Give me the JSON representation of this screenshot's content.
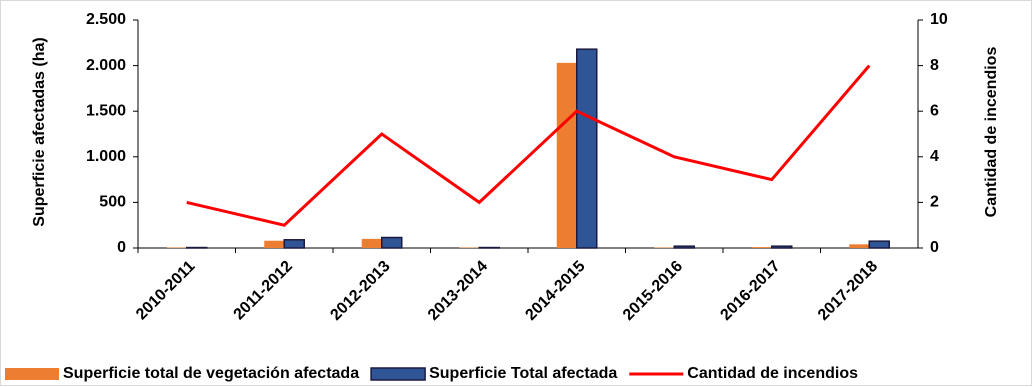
{
  "chart_data": {
    "type": "combo",
    "categories": [
      "2010-2011",
      "2011-2012",
      "2012-2013",
      "2013-2014",
      "2014-2015",
      "2015-2016",
      "2016-2017",
      "2017-2018"
    ],
    "ylabel": "Superficie  afectadas (ha)",
    "y2label": "Cantidad de incendios",
    "ylim": [
      0,
      2500
    ],
    "yticks": [
      0,
      500,
      {
        "value": 1000,
        "label": "1.000"
      },
      {
        "value": 1500,
        "label": "1.500"
      },
      {
        "value": 2000,
        "label": "2.000"
      },
      {
        "value": 2500,
        "label": "2.500"
      }
    ],
    "y2lim": [
      0,
      10
    ],
    "y2ticks": [
      0,
      2,
      4,
      6,
      8,
      10
    ],
    "series": [
      {
        "name": "Superficie total de vegetación afectada",
        "type": "bar",
        "color": "#ed7d31",
        "values": [
          5,
          80,
          100,
          5,
          2030,
          5,
          10,
          40
        ]
      },
      {
        "name": "Superficie Total afectada",
        "type": "bar",
        "color": "#2f5597",
        "values": [
          5,
          90,
          115,
          5,
          2180,
          20,
          20,
          75
        ]
      },
      {
        "name": "Cantidad de incendios",
        "type": "line",
        "axis": "y2",
        "color": "#ff0000",
        "values": [
          2,
          1,
          5,
          2,
          6,
          4,
          3,
          8
        ]
      }
    ]
  }
}
